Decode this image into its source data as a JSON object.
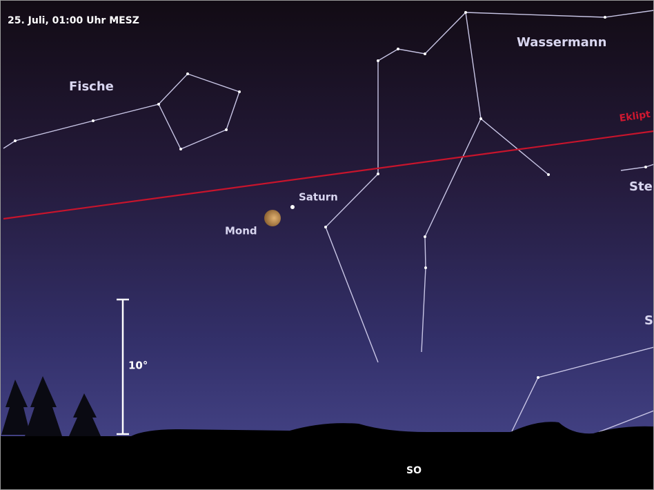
{
  "header": {
    "title": "25. Juli, 01:00 Uhr MESZ"
  },
  "constellations": [
    {
      "label": "Fische"
    },
    {
      "label": "Wassermann"
    },
    {
      "label": "Ste"
    },
    {
      "label": "S"
    }
  ],
  "objects": [
    {
      "label": "Saturn"
    },
    {
      "label": "Mond"
    }
  ],
  "ecliptic_label": "Eklipt",
  "scale_label": "10°",
  "direction": "SO"
}
